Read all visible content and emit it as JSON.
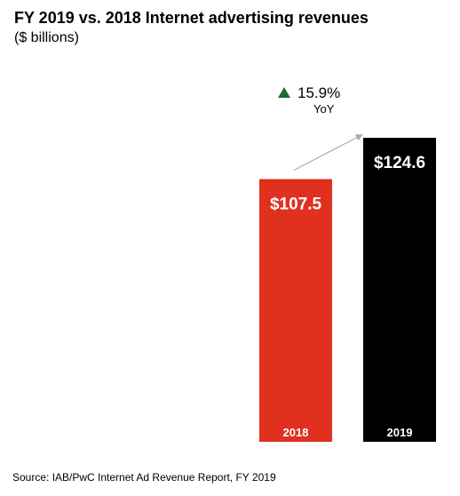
{
  "title": "FY 2019 vs. 2018 Internet advertising revenues",
  "subtitle": "($ billions)",
  "source": "Source: IAB/PwC Internet Ad Revenue Report, FY 2019",
  "growth": {
    "value": "15.9%",
    "label": "YoY",
    "icon": "triangle-up-icon",
    "icon_color": "#1e6b2e",
    "arrow_color": "#aaaaaa"
  },
  "chart_data": {
    "type": "bar",
    "categories": [
      "2018",
      "2019"
    ],
    "values": [
      107.5,
      124.6
    ],
    "value_labels": [
      "$107.5",
      "$124.6"
    ],
    "colors": [
      "#e0301e",
      "#000000"
    ],
    "title": "FY 2019 vs. 2018 Internet advertising revenues",
    "subtitle": "($ billions)",
    "grid": false,
    "legend": false
  }
}
